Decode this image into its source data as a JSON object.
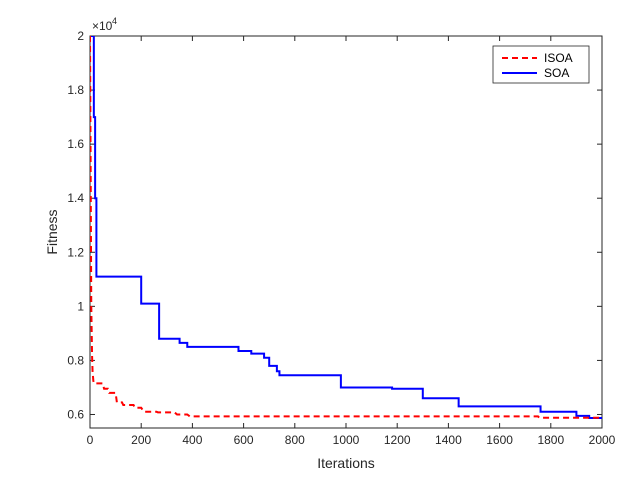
{
  "chart_data": {
    "type": "line",
    "title": "",
    "xlabel": "Iterations",
    "ylabel": "Fitness",
    "xlim": [
      0,
      2000
    ],
    "ylim": [
      5500,
      20000
    ],
    "x_ticks": [
      0,
      200,
      400,
      600,
      800,
      1000,
      1200,
      1400,
      1600,
      1800,
      2000
    ],
    "y_ticks": [
      6000,
      8000,
      10000,
      12000,
      14000,
      16000,
      18000,
      20000
    ],
    "y_tick_labels": [
      "0.6",
      "0.8",
      "1",
      "1.2",
      "1.4",
      "1.6",
      "1.8",
      "2"
    ],
    "y_exponent_label": "×10",
    "y_exponent_power": "4",
    "grid": false,
    "legend_position": "top-right",
    "series": [
      {
        "name": "ISOA",
        "color": "#ff0000",
        "dash": "dashed",
        "x": [
          0,
          3,
          5,
          8,
          10,
          13,
          15,
          50,
          55,
          70,
          75,
          100,
          105,
          125,
          130,
          170,
          175,
          200,
          210,
          260,
          265,
          330,
          340,
          380,
          390,
          1750,
          1755,
          2000
        ],
        "y": [
          20000,
          14000,
          10000,
          8200,
          7600,
          7250,
          7150,
          7150,
          6950,
          6950,
          6800,
          6800,
          6450,
          6450,
          6350,
          6350,
          6250,
          6250,
          6100,
          6100,
          6080,
          6080,
          6000,
          6000,
          5930,
          5930,
          5880,
          5880
        ]
      },
      {
        "name": "SOA",
        "color": "#0000ff",
        "dash": "solid",
        "x": [
          0,
          15,
          15,
          20,
          20,
          25,
          25,
          200,
          200,
          270,
          270,
          350,
          350,
          380,
          380,
          580,
          580,
          630,
          630,
          680,
          680,
          700,
          700,
          730,
          730,
          740,
          740,
          980,
          980,
          1180,
          1180,
          1300,
          1300,
          1440,
          1440,
          1760,
          1760,
          1900,
          1900,
          1950,
          1950,
          2000
        ],
        "y": [
          20000,
          20000,
          17000,
          17000,
          14000,
          14000,
          11100,
          11100,
          10100,
          10100,
          8800,
          8800,
          8650,
          8650,
          8500,
          8500,
          8350,
          8350,
          8250,
          8250,
          8100,
          8100,
          7800,
          7800,
          7600,
          7600,
          7450,
          7450,
          7000,
          7000,
          6950,
          6950,
          6600,
          6600,
          6300,
          6300,
          6100,
          6100,
          5950,
          5950,
          5870,
          5870
        ]
      }
    ]
  }
}
